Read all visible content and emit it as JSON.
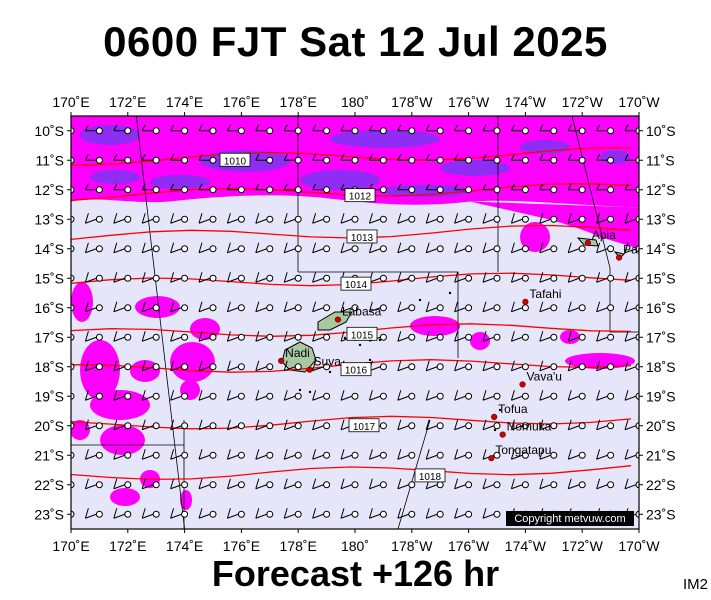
{
  "title": "0600 FJT Sat 12 Jul 2025",
  "subtitle": "Forecast +126 hr",
  "image_code": "IM2",
  "copyright": "Copyright metvuw.com",
  "colors": {
    "ocean_bg": "#e6e6fa",
    "rain_light": "#ff00ff",
    "rain_heavy": "#6a3cf0",
    "isobar": "#ff0000",
    "land": "#a8c8a0",
    "city": "#cc0000"
  },
  "map": {
    "lon_min": 170,
    "lon_max": 190,
    "lat_top": -9.5,
    "lat_bottom": -23.5,
    "lon_ticks_top": [
      "170˚E",
      "172˚E",
      "174˚E",
      "176˚E",
      "178˚E",
      "180˚",
      "178˚W",
      "176˚W",
      "174˚W",
      "172˚W",
      "170˚W"
    ],
    "lon_ticks_bottom": [
      "170˚E",
      "172˚E",
      "174˚E",
      "176˚E",
      "178˚E",
      "180˚",
      "178˚W",
      "176˚W",
      "174˚W",
      "172˚W",
      "170˚W"
    ],
    "lat_ticks": [
      "10˚S",
      "11˚S",
      "12˚S",
      "13˚S",
      "14˚S",
      "15˚S",
      "16˚S",
      "17˚S",
      "18˚S",
      "19˚S",
      "20˚S",
      "21˚S",
      "22˚S",
      "23˚S"
    ]
  },
  "places": [
    {
      "name": "Apia",
      "lon": 188.2,
      "lat": -13.8
    },
    {
      "name": "Pago Pago",
      "lon": 189.3,
      "lat": -14.3
    },
    {
      "name": "Tafahi",
      "lon": 186.0,
      "lat": -15.8
    },
    {
      "name": "Labasa",
      "lon": 179.4,
      "lat": -16.4
    },
    {
      "name": "Nadi",
      "lon": 177.4,
      "lat": -17.8
    },
    {
      "name": "Suva",
      "lon": 178.4,
      "lat": -18.1
    },
    {
      "name": "Vava'u",
      "lon": 185.9,
      "lat": -18.6
    },
    {
      "name": "Tofua",
      "lon": 184.9,
      "lat": -19.7
    },
    {
      "name": "Nomuka",
      "lon": 185.2,
      "lat": -20.3
    },
    {
      "name": "Tongatapu",
      "lon": 184.8,
      "lat": -21.1
    }
  ],
  "isobars": [
    {
      "label": "1010",
      "lat": -11.0
    },
    {
      "label": "1012",
      "lat": -12.2
    },
    {
      "label": "1013",
      "lat": -13.6
    },
    {
      "label": "1014",
      "lat": -15.2
    },
    {
      "label": "1015",
      "lat": -16.9
    },
    {
      "label": "1016",
      "lat": -18.1
    },
    {
      "label": "1017",
      "lat": -20.0
    },
    {
      "label": "1018",
      "lat": -21.7
    }
  ]
}
